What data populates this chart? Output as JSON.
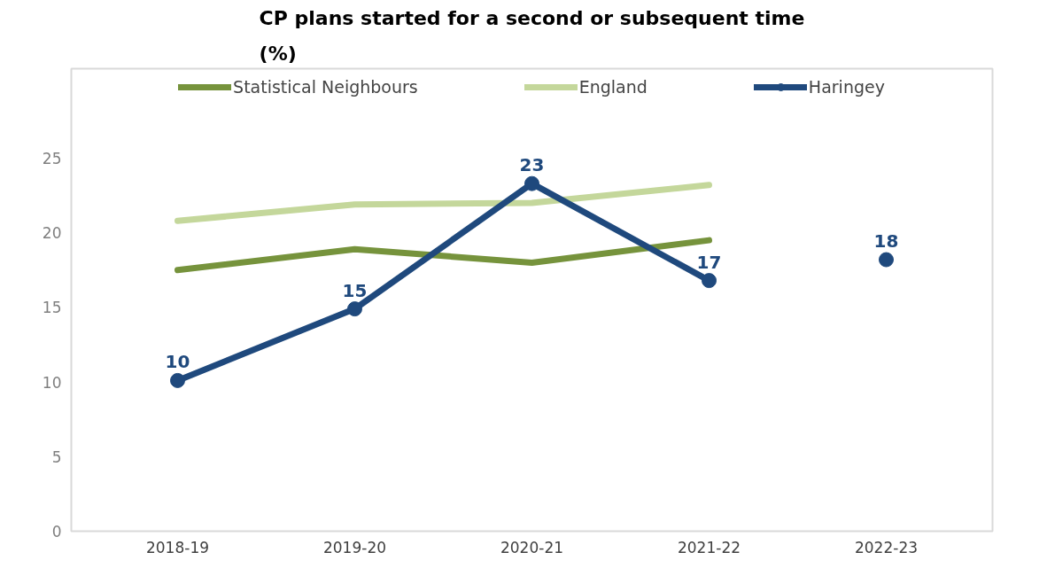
{
  "chart_data": {
    "type": "line",
    "title": "CP plans started for a second or subsequent time\n(%)",
    "categories": [
      "2018-19",
      "2019-20",
      "2020-21",
      "2021-22",
      "2022-23"
    ],
    "ylim": [
      0,
      31
    ],
    "yticks": [
      0,
      5,
      10,
      15,
      20,
      25
    ],
    "grid": false,
    "legend": "top",
    "marker": "none",
    "series": [
      {
        "name": "Statistical Neighbours",
        "color": "#76933c",
        "values": [
          17.5,
          18.9,
          18.0,
          19.5,
          null
        ]
      },
      {
        "name": "England",
        "color": "#c4d79b",
        "values": [
          20.8,
          21.9,
          22.0,
          23.2,
          null
        ]
      },
      {
        "name": "Haringey",
        "color": "#1f497d",
        "marker": "circle",
        "values": [
          10.1,
          14.9,
          23.3,
          16.8,
          null
        ],
        "value_labels": [
          "10",
          "15",
          "23",
          "17",
          null
        ]
      },
      {
        "type": "scatter",
        "color": "#1f497d",
        "marker": "circle",
        "values": [
          null,
          null,
          null,
          null,
          18.2
        ],
        "value_labels": [
          null,
          null,
          null,
          null,
          "18"
        ]
      }
    ]
  }
}
